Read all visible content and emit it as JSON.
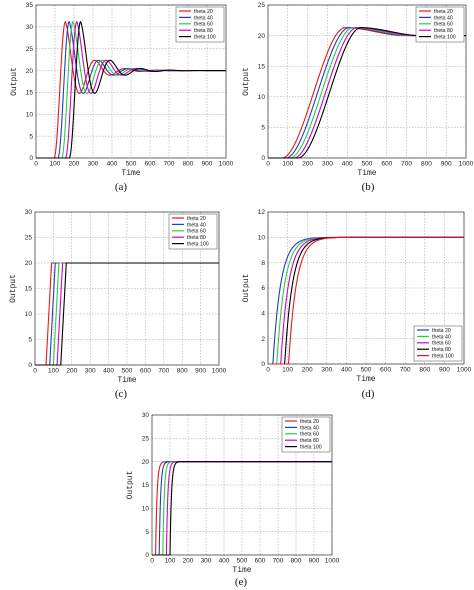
{
  "chart_data": [
    {
      "caption": "(a)",
      "type": "line",
      "xlabel": "Time",
      "ylabel": "Output",
      "xlim": [
        0,
        1000
      ],
      "ylim": [
        0,
        35
      ],
      "xticks": [
        0,
        100,
        200,
        300,
        400,
        500,
        600,
        700,
        800,
        900,
        1000
      ],
      "yticks": [
        0,
        5,
        10,
        15,
        20,
        25,
        30,
        35
      ],
      "grid": true,
      "legend": "top-right",
      "response": {
        "kind": "oscillatory",
        "final": 20,
        "peak": 31.2,
        "undershoot": 13.5,
        "period": 160,
        "decay_per_half_period": 0.45,
        "rise_time": 60
      },
      "series": [
        {
          "name": "theta 20",
          "color": "#e31a1c",
          "delay": 95
        },
        {
          "name": "theta 40",
          "color": "#1f3fbf",
          "delay": 115
        },
        {
          "name": "theta 60",
          "color": "#2ecc40",
          "delay": 135
        },
        {
          "name": "theta 80",
          "color": "#d000d0",
          "delay": 155
        },
        {
          "name": "theta 100",
          "color": "#000000",
          "delay": 175
        }
      ]
    },
    {
      "caption": "(b)",
      "type": "line",
      "xlabel": "Time",
      "ylabel": "Output",
      "xlim": [
        0,
        1000
      ],
      "ylim": [
        0,
        25
      ],
      "xticks": [
        0,
        100,
        200,
        300,
        400,
        500,
        600,
        700,
        800,
        900,
        1000
      ],
      "yticks": [
        0,
        5,
        10,
        15,
        20,
        25
      ],
      "grid": true,
      "legend": "top-right",
      "response": {
        "kind": "overshoot",
        "final": 20,
        "peak": 21.3,
        "peak_offset": 320,
        "settle_offset": 620
      },
      "series": [
        {
          "name": "theta 20",
          "color": "#e31a1c",
          "delay": 70
        },
        {
          "name": "theta 40",
          "color": "#1f3fbf",
          "delay": 90
        },
        {
          "name": "theta 60",
          "color": "#2ecc40",
          "delay": 110
        },
        {
          "name": "theta 80",
          "color": "#d000d0",
          "delay": 130
        },
        {
          "name": "theta 100",
          "color": "#000000",
          "delay": 150
        }
      ]
    },
    {
      "caption": "(c)",
      "type": "line",
      "xlabel": "Time",
      "ylabel": "Output",
      "xlim": [
        0,
        1000
      ],
      "ylim": [
        0,
        30
      ],
      "xticks": [
        0,
        100,
        200,
        300,
        400,
        500,
        600,
        700,
        800,
        900,
        1000
      ],
      "yticks": [
        0,
        5,
        10,
        15,
        20,
        25,
        30
      ],
      "grid": true,
      "legend": "top-right",
      "response": {
        "kind": "ramp",
        "final": 20,
        "rise_time": 30
      },
      "series": [
        {
          "name": "theta 20",
          "color": "#e31a1c",
          "delay": 60
        },
        {
          "name": "theta 40",
          "color": "#1f3fbf",
          "delay": 80
        },
        {
          "name": "theta 60",
          "color": "#2ecc40",
          "delay": 100
        },
        {
          "name": "theta 80",
          "color": "#d000d0",
          "delay": 120
        },
        {
          "name": "theta 100",
          "color": "#000000",
          "delay": 140
        }
      ]
    },
    {
      "caption": "(d)",
      "type": "line",
      "xlabel": "Time",
      "ylabel": "Output",
      "xlim": [
        0,
        1000
      ],
      "ylim": [
        0,
        12
      ],
      "xticks": [
        0,
        100,
        200,
        300,
        400,
        500,
        600,
        700,
        800,
        900,
        1000
      ],
      "yticks": [
        0,
        2,
        4,
        6,
        8,
        10,
        12
      ],
      "grid": true,
      "legend": "bottom-right",
      "response": {
        "kind": "exponential",
        "final": 10,
        "tau": 40
      },
      "series": [
        {
          "name": "theta 20",
          "color": "#1f3fbf",
          "delay": 25
        },
        {
          "name": "theta 40",
          "color": "#2ecc40",
          "delay": 45
        },
        {
          "name": "theta 60",
          "color": "#d000d0",
          "delay": 65
        },
        {
          "name": "theta 80",
          "color": "#000000",
          "delay": 85
        },
        {
          "name": "theta 100",
          "color": "#e31a1c",
          "delay": 105
        }
      ]
    },
    {
      "caption": "(e)",
      "type": "line",
      "xlabel": "Time",
      "ylabel": "Output",
      "xlim": [
        0,
        1000
      ],
      "ylim": [
        0,
        30
      ],
      "xticks": [
        0,
        100,
        200,
        300,
        400,
        500,
        600,
        700,
        800,
        900,
        1000
      ],
      "yticks": [
        0,
        5,
        10,
        15,
        20,
        25,
        30
      ],
      "grid": true,
      "legend": "top-right",
      "response": {
        "kind": "fast",
        "final": 20,
        "tau": 8
      },
      "series": [
        {
          "name": "theta 20",
          "color": "#e31a1c",
          "delay": 20
        },
        {
          "name": "theta 40",
          "color": "#1f3fbf",
          "delay": 40
        },
        {
          "name": "theta 60",
          "color": "#2ecc40",
          "delay": 60
        },
        {
          "name": "theta 80",
          "color": "#d000d0",
          "delay": 80
        },
        {
          "name": "theta 100",
          "color": "#000000",
          "delay": 100
        }
      ]
    }
  ]
}
